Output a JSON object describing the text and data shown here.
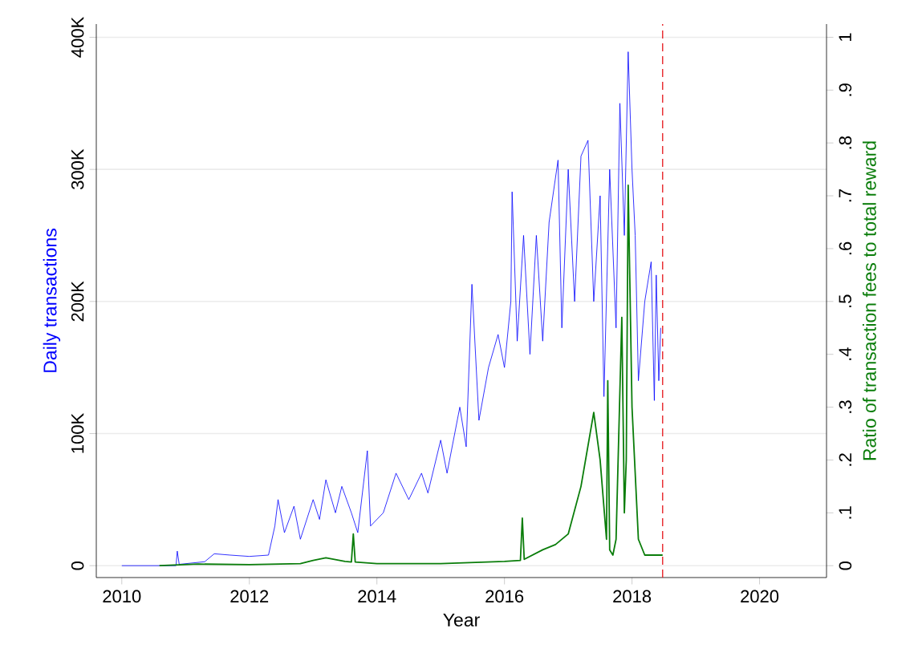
{
  "chart_data": {
    "type": "line",
    "xlabel": "Year",
    "ylabel": "Daily transactions",
    "y2label": "Ratio of transaction fees to total reward",
    "xlim": [
      2009.6,
      2021.05
    ],
    "xticks": [
      2010,
      2012,
      2014,
      2016,
      2018,
      2020
    ],
    "ylim": [
      -9000,
      410000
    ],
    "yticks": [
      {
        "value": 0,
        "label": "0"
      },
      {
        "value": 100000,
        "label": "100K"
      },
      {
        "value": 200000,
        "label": "200K"
      },
      {
        "value": 300000,
        "label": "300K"
      },
      {
        "value": 400000,
        "label": "400K"
      }
    ],
    "y2lim": [
      -0.0225,
      1.025
    ],
    "y2ticks": [
      0,
      {
        "value": 0.1,
        "label": ".1"
      },
      {
        "value": 0.2,
        "label": ".2"
      },
      {
        "value": 0.3,
        "label": ".3"
      },
      {
        "value": 0.4,
        "label": ".4"
      },
      {
        "value": 0.5,
        "label": ".5"
      },
      {
        "value": 0.6,
        "label": ".6"
      },
      {
        "value": 0.7,
        "label": ".7"
      },
      {
        "value": 0.8,
        "label": ".8"
      },
      {
        "value": 0.9,
        "label": ".9"
      },
      1
    ],
    "grid": "y",
    "ref_lines": [
      {
        "axis": "x",
        "value": 2018.48,
        "color": "#e8252a",
        "line_style": "dashed"
      }
    ],
    "series": [
      {
        "color": "#0000ff",
        "axis": "y",
        "x": [
          2010.0,
          2010.85,
          2010.87,
          2010.9,
          2011.3,
          2011.45,
          2011.7,
          2012.0,
          2012.3,
          2012.4,
          2012.45,
          2012.55,
          2012.7,
          2012.8,
          2013.0,
          2013.1,
          2013.2,
          2013.35,
          2013.45,
          2013.6,
          2013.7,
          2013.85,
          2013.9,
          2014.1,
          2014.3,
          2014.5,
          2014.7,
          2014.8,
          2015.0,
          2015.1,
          2015.3,
          2015.4,
          2015.49,
          2015.6,
          2015.75,
          2015.9,
          2016.0,
          2016.1,
          2016.12,
          2016.2,
          2016.3,
          2016.4,
          2016.5,
          2016.6,
          2016.7,
          2016.84,
          2016.9,
          2017.0,
          2017.1,
          2017.2,
          2017.31,
          2017.4,
          2017.5,
          2017.56,
          2017.65,
          2017.75,
          2017.81,
          2017.88,
          2017.94,
          2018.0,
          2018.05,
          2018.1,
          2018.2,
          2018.3,
          2018.35,
          2018.38,
          2018.42,
          2018.45
        ],
        "values": [
          0,
          0,
          11000,
          1000,
          3000,
          9000,
          8000,
          7000,
          8000,
          30000,
          50000,
          25000,
          45000,
          20000,
          50000,
          35000,
          65000,
          40000,
          60000,
          40000,
          25000,
          87000,
          30000,
          40000,
          70000,
          50000,
          70000,
          55000,
          95000,
          70000,
          120000,
          90000,
          213000,
          110000,
          150000,
          175000,
          150000,
          200000,
          283000,
          170000,
          250000,
          160000,
          250000,
          170000,
          260000,
          307000,
          180000,
          300000,
          200000,
          310000,
          322000,
          200000,
          280000,
          128000,
          300000,
          180000,
          350000,
          250000,
          389000,
          300000,
          250000,
          140000,
          200000,
          230000,
          125000,
          220000,
          140000,
          180000
        ]
      },
      {
        "color": "#0a7d0a",
        "axis": "y2",
        "x": [
          2010.59,
          2011.2,
          2012.0,
          2012.8,
          2013.0,
          2013.2,
          2013.5,
          2013.6,
          2013.63,
          2013.66,
          2014.0,
          2015.0,
          2016.0,
          2016.25,
          2016.28,
          2016.31,
          2016.6,
          2016.8,
          2017.0,
          2017.2,
          2017.4,
          2017.5,
          2017.6,
          2017.62,
          2017.65,
          2017.7,
          2017.75,
          2017.84,
          2017.88,
          2017.91,
          2017.94,
          2018.0,
          2018.1,
          2018.2,
          2018.48
        ],
        "values": [
          0,
          0.003,
          0.002,
          0.004,
          0.01,
          0.015,
          0.008,
          0.007,
          0.06,
          0.007,
          0.004,
          0.004,
          0.008,
          0.01,
          0.09,
          0.012,
          0.03,
          0.04,
          0.06,
          0.15,
          0.29,
          0.2,
          0.05,
          0.35,
          0.03,
          0.02,
          0.05,
          0.47,
          0.1,
          0.2,
          0.72,
          0.3,
          0.05,
          0.02,
          0.02
        ]
      }
    ]
  }
}
